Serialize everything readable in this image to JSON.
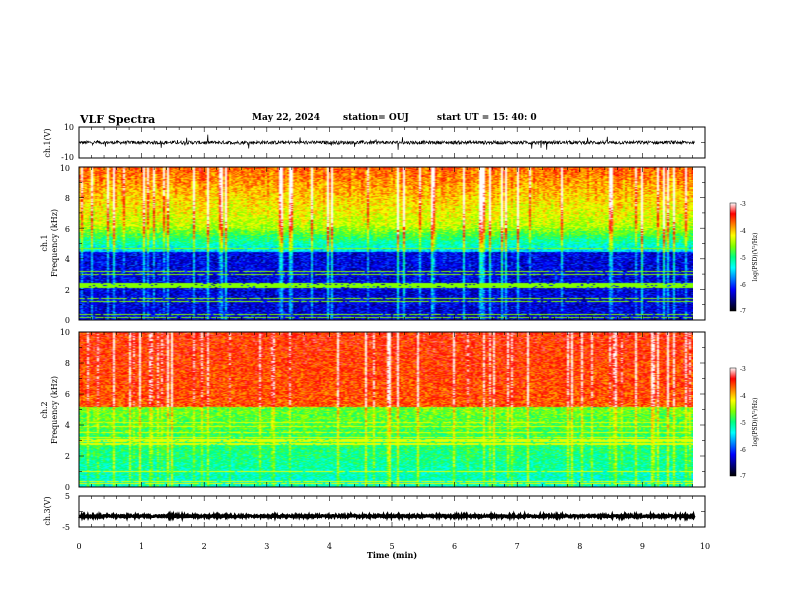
{
  "header": {
    "title": "VLF Spectra",
    "date": "May 22, 2024",
    "station": "station= OUJ",
    "start": "start  UT  =   15: 40: 0"
  },
  "colors": {
    "scale": [
      "#000000",
      "#000080",
      "#0000ff",
      "#0080ff",
      "#00ffff",
      "#00ff80",
      "#80ff00",
      "#ffff00",
      "#ff8000",
      "#ff0000",
      "#ffffff"
    ]
  },
  "chart_data": [
    {
      "type": "line",
      "ylabel": "ch.1(V)",
      "ylim": [
        -10,
        10
      ],
      "yticks": [
        "10",
        "-10"
      ],
      "baseline": 0,
      "xlim": [
        0,
        10
      ]
    },
    {
      "type": "heatmap",
      "ylabel": "ch.1\nFrequency (kHz)",
      "ylabel_line1": "ch.1",
      "ylabel_line2": "Frequency (kHz)",
      "ylim": [
        0,
        10
      ],
      "yticks": [
        "0",
        "2",
        "4",
        "6",
        "8",
        "10"
      ],
      "xlim": [
        0,
        9.8
      ],
      "colorbar": {
        "label": "log(PSD)(V²/Hz)",
        "range": [
          -7,
          -3
        ],
        "ticks": [
          "-3",
          "-4",
          "-5",
          "-6",
          "-7"
        ]
      }
    },
    {
      "type": "heatmap",
      "ylabel": "ch.2\nFrequency (kHz)",
      "ylabel_line1": "ch.2",
      "ylabel_line2": "Frequency (kHz)",
      "ylim": [
        0,
        10
      ],
      "yticks": [
        "0",
        "2",
        "4",
        "6",
        "8",
        "10"
      ],
      "xlim": [
        0,
        9.8
      ],
      "colorbar": {
        "label": "log(PSD)(V²/Hz)",
        "range": [
          -7,
          -3
        ],
        "ticks": [
          "-3",
          "-4",
          "-5",
          "-6",
          "-7"
        ]
      }
    },
    {
      "type": "line",
      "ylabel": "ch.3(V)",
      "ylim": [
        -5,
        5
      ],
      "yticks": [
        "5",
        "-5"
      ],
      "baseline": -1.5,
      "xlim": [
        0,
        10
      ],
      "xlabel": "Time (min)",
      "xticks": [
        "0",
        "1",
        "2",
        "3",
        "4",
        "5",
        "6",
        "7",
        "8",
        "9",
        "10"
      ]
    }
  ]
}
